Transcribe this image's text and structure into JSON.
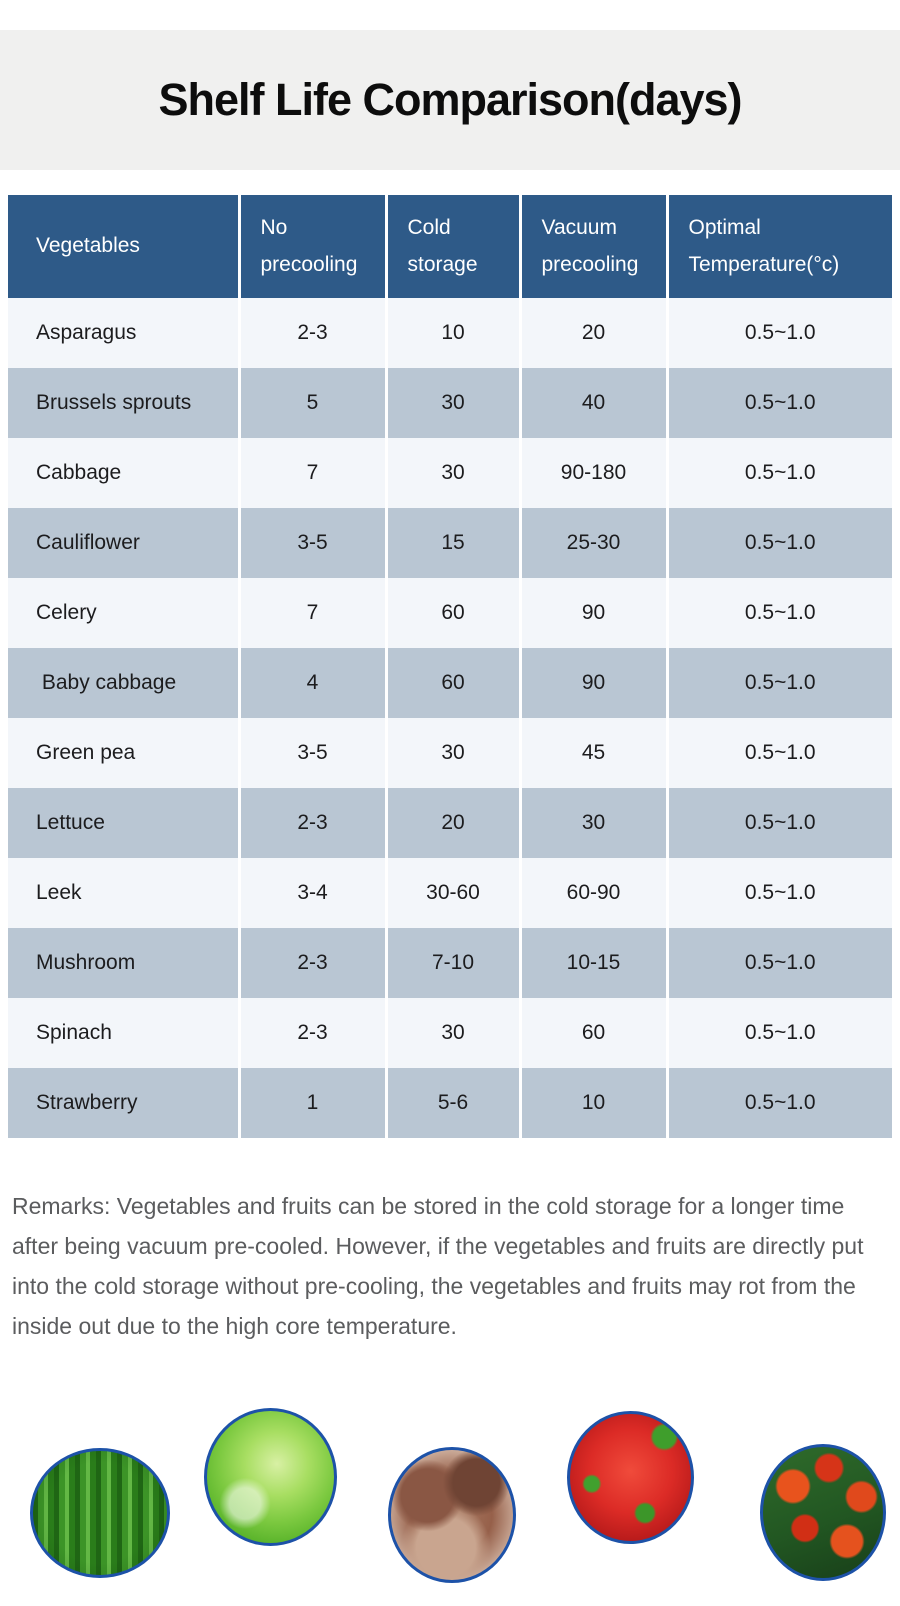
{
  "title": "Shelf Life Comparison(days)",
  "table": {
    "headers": [
      "Vegetables",
      "No\nprecooling",
      "Cold\nstorage",
      "Vacuum\nprecooling",
      "Optimal\nTemperature(°c)"
    ],
    "rows": [
      {
        "vegetable": "Asparagus",
        "no_precooling": "2-3",
        "cold_storage": "10",
        "vacuum_precooling": "20",
        "optimal_temperature": "0.5~1.0"
      },
      {
        "vegetable": "Brussels sprouts",
        "no_precooling": "5",
        "cold_storage": "30",
        "vacuum_precooling": "40",
        "optimal_temperature": "0.5~1.0"
      },
      {
        "vegetable": "Cabbage",
        "no_precooling": "7",
        "cold_storage": "30",
        "vacuum_precooling": "90-180",
        "optimal_temperature": "0.5~1.0"
      },
      {
        "vegetable": "Cauliflower",
        "no_precooling": "3-5",
        "cold_storage": "15",
        "vacuum_precooling": "25-30",
        "optimal_temperature": "0.5~1.0"
      },
      {
        "vegetable": "Celery",
        "no_precooling": "7",
        "cold_storage": "60",
        "vacuum_precooling": "90",
        "optimal_temperature": "0.5~1.0"
      },
      {
        "vegetable": " Baby cabbage",
        "no_precooling": "4",
        "cold_storage": "60",
        "vacuum_precooling": "90",
        "optimal_temperature": "0.5~1.0"
      },
      {
        "vegetable": "Green pea",
        "no_precooling": "3-5",
        "cold_storage": "30",
        "vacuum_precooling": "45",
        "optimal_temperature": "0.5~1.0"
      },
      {
        "vegetable": "Lettuce",
        "no_precooling": "2-3",
        "cold_storage": "20",
        "vacuum_precooling": "30",
        "optimal_temperature": "0.5~1.0"
      },
      {
        "vegetable": "Leek",
        "no_precooling": "3-4",
        "cold_storage": "30-60",
        "vacuum_precooling": "60-90",
        "optimal_temperature": "0.5~1.0"
      },
      {
        "vegetable": "Mushroom",
        "no_precooling": "2-3",
        "cold_storage": "7-10",
        "vacuum_precooling": "10-15",
        "optimal_temperature": "0.5~1.0"
      },
      {
        "vegetable": "Spinach",
        "no_precooling": "2-3",
        "cold_storage": "30",
        "vacuum_precooling": "60",
        "optimal_temperature": "0.5~1.0"
      },
      {
        "vegetable": "Strawberry",
        "no_precooling": "1",
        "cold_storage": "5-6",
        "vacuum_precooling": "10",
        "optimal_temperature": "0.5~1.0"
      }
    ]
  },
  "remarks": "Remarks: Vegetables and fruits can be stored in the cold storage for a longer time after being vacuum pre-cooled. However, if the vegetables and fruits are directly put into the cold storage without pre-cooling, the vegetables and fruits may rot from the inside out due to the high core temperature.",
  "photos": [
    {
      "name": "asparagus-photo",
      "subject": "asparagus spears"
    },
    {
      "name": "lettuce-photo",
      "subject": "lettuce head"
    },
    {
      "name": "mushroom-photo",
      "subject": "shiitake mushrooms"
    },
    {
      "name": "strawberry-photo",
      "subject": "strawberries"
    },
    {
      "name": "tulips-photo",
      "subject": "red tulips"
    }
  ],
  "colors": {
    "header_bg": "#2e5a88",
    "row_light": "#f3f6fa",
    "row_dark": "#b9c6d3",
    "band_bg": "#f0f0ef",
    "remarks_text": "#5b5c5e",
    "circle_border": "#1d52a8"
  }
}
